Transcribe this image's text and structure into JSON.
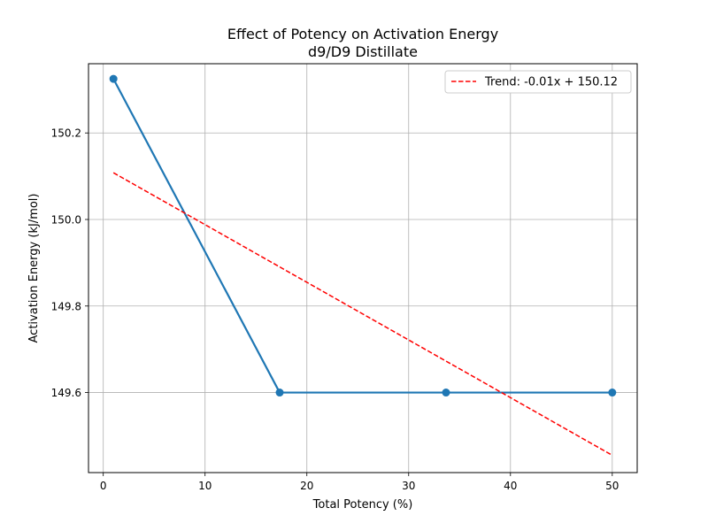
{
  "chart_data": {
    "type": "line",
    "title": "Effect of Potency on Activation Energy",
    "subtitle": "d9/D9 Distillate",
    "xlabel": "Total Potency (%)",
    "ylabel": "Activation Energy (kJ/mol)",
    "xlim": [
      -1.45,
      52.45
    ],
    "ylim": [
      149.415,
      150.36
    ],
    "xticks": [
      0,
      10,
      20,
      30,
      40,
      50
    ],
    "xtick_labels": [
      "0",
      "10",
      "20",
      "30",
      "40",
      "50"
    ],
    "yticks": [
      149.6,
      149.8,
      150.0,
      150.2
    ],
    "ytick_labels": [
      "149.6",
      "149.8",
      "150.0",
      "150.2"
    ],
    "grid": true,
    "legend_position": "top-right",
    "series": [
      {
        "name": "",
        "style": "solid-line-with-markers",
        "color": "#1f77b4",
        "x": [
          1.0,
          17.33,
          33.67,
          50.0
        ],
        "y": [
          150.325,
          149.6,
          149.6,
          149.6
        ]
      }
    ],
    "trend": {
      "name": "Trend: -0.01x + 150.12",
      "style": "dashed",
      "color": "#ff0000",
      "x": [
        1.0,
        50.0
      ],
      "y": [
        150.108,
        149.455
      ]
    }
  }
}
